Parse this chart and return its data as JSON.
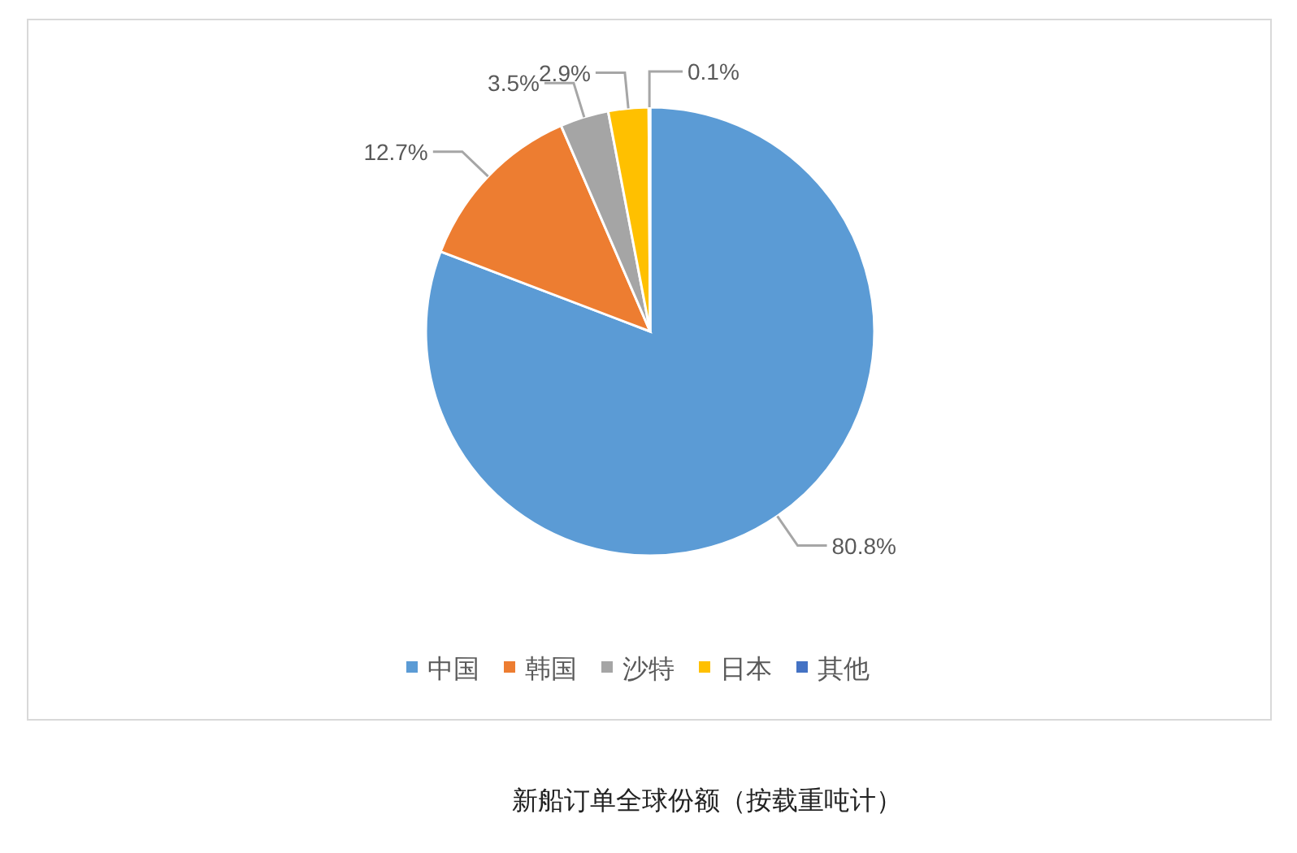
{
  "chart_data": {
    "type": "pie",
    "title": "新船订单全球份额（按载重吨计）",
    "categories": [
      "中国",
      "韩国",
      "沙特",
      "日本",
      "其他"
    ],
    "values": [
      80.8,
      12.7,
      3.5,
      2.9,
      0.1
    ],
    "colors": [
      "#5b9bd5",
      "#ed7d31",
      "#a5a5a5",
      "#ffc000",
      "#4472c4"
    ],
    "value_labels": [
      "80.8%",
      "12.7%",
      "3.5%",
      "2.9%",
      "0.1%"
    ],
    "legend": "bottom"
  }
}
